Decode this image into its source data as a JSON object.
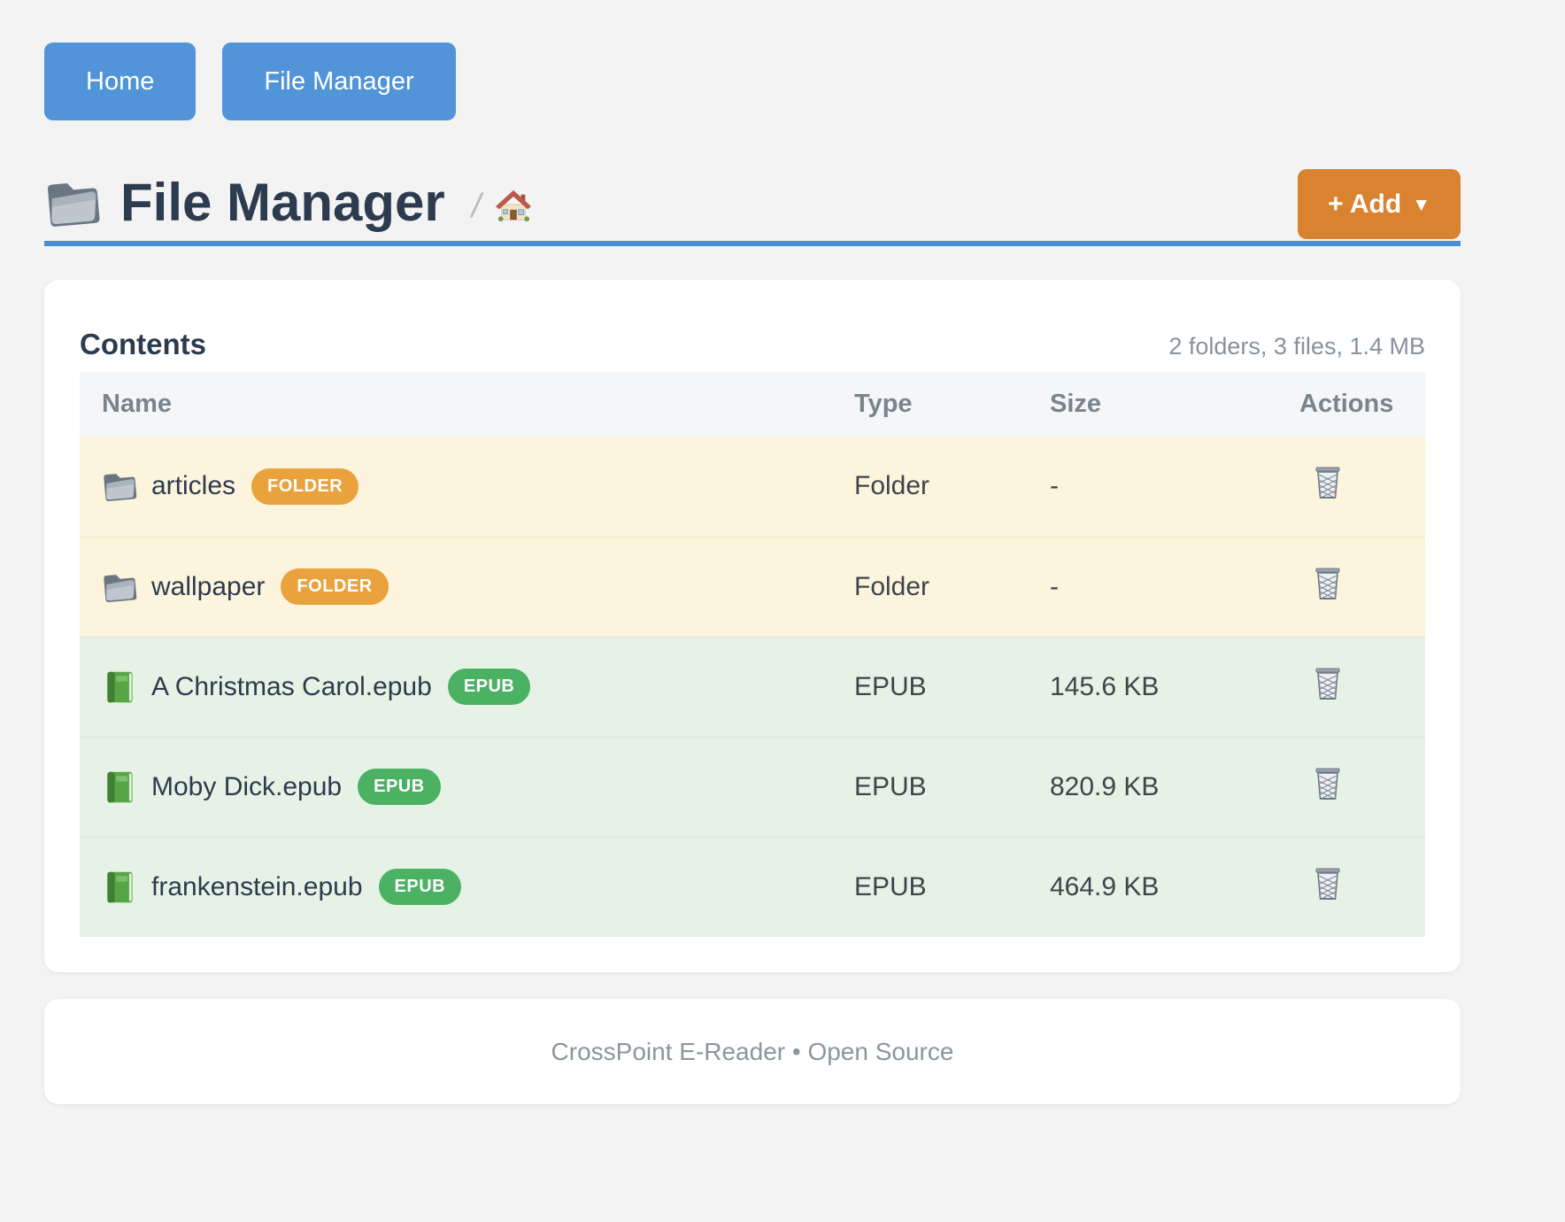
{
  "nav": {
    "buttons": [
      {
        "label": "Home"
      },
      {
        "label": "File Manager"
      }
    ]
  },
  "header": {
    "title": "File Manager",
    "title_icon": "folder-icon",
    "breadcrumb_separator": "/",
    "breadcrumb_home_icon": "house-icon",
    "add_button_label": "+ Add",
    "add_button_caret": "▼"
  },
  "content": {
    "heading": "Contents",
    "summary": "2 folders, 3 files, 1.4 MB",
    "table": {
      "columns": [
        "Name",
        "Type",
        "Size",
        "Actions"
      ],
      "rows": [
        {
          "name": "articles",
          "kind": "folder",
          "icon": "folder-icon",
          "badge": "FOLDER",
          "type": "Folder",
          "size": "-",
          "action_icon": "trash-icon"
        },
        {
          "name": "wallpaper",
          "kind": "folder",
          "icon": "folder-icon",
          "badge": "FOLDER",
          "type": "Folder",
          "size": "-",
          "action_icon": "trash-icon"
        },
        {
          "name": "A Christmas Carol.epub",
          "kind": "epub",
          "icon": "book-icon",
          "badge": "EPUB",
          "type": "EPUB",
          "size": "145.6 KB",
          "action_icon": "trash-icon"
        },
        {
          "name": "Moby Dick.epub",
          "kind": "epub",
          "icon": "book-icon",
          "badge": "EPUB",
          "type": "EPUB",
          "size": "820.9 KB",
          "action_icon": "trash-icon"
        },
        {
          "name": "frankenstein.epub",
          "kind": "epub",
          "icon": "book-icon",
          "badge": "EPUB",
          "type": "EPUB",
          "size": "464.9 KB",
          "action_icon": "trash-icon"
        }
      ]
    }
  },
  "footer": {
    "text": "CrossPoint E-Reader • Open Source"
  },
  "colors": {
    "nav_button": "#5294d8",
    "accent_divider": "#4a8fd0",
    "add_button": "#d9822f",
    "folder_badge": "#e9a23c",
    "epub_badge": "#4bb163",
    "folder_row_bg": "#fcf4dc",
    "epub_row_bg": "#e6f2e5",
    "table_header_bg": "#f5f6f8"
  }
}
